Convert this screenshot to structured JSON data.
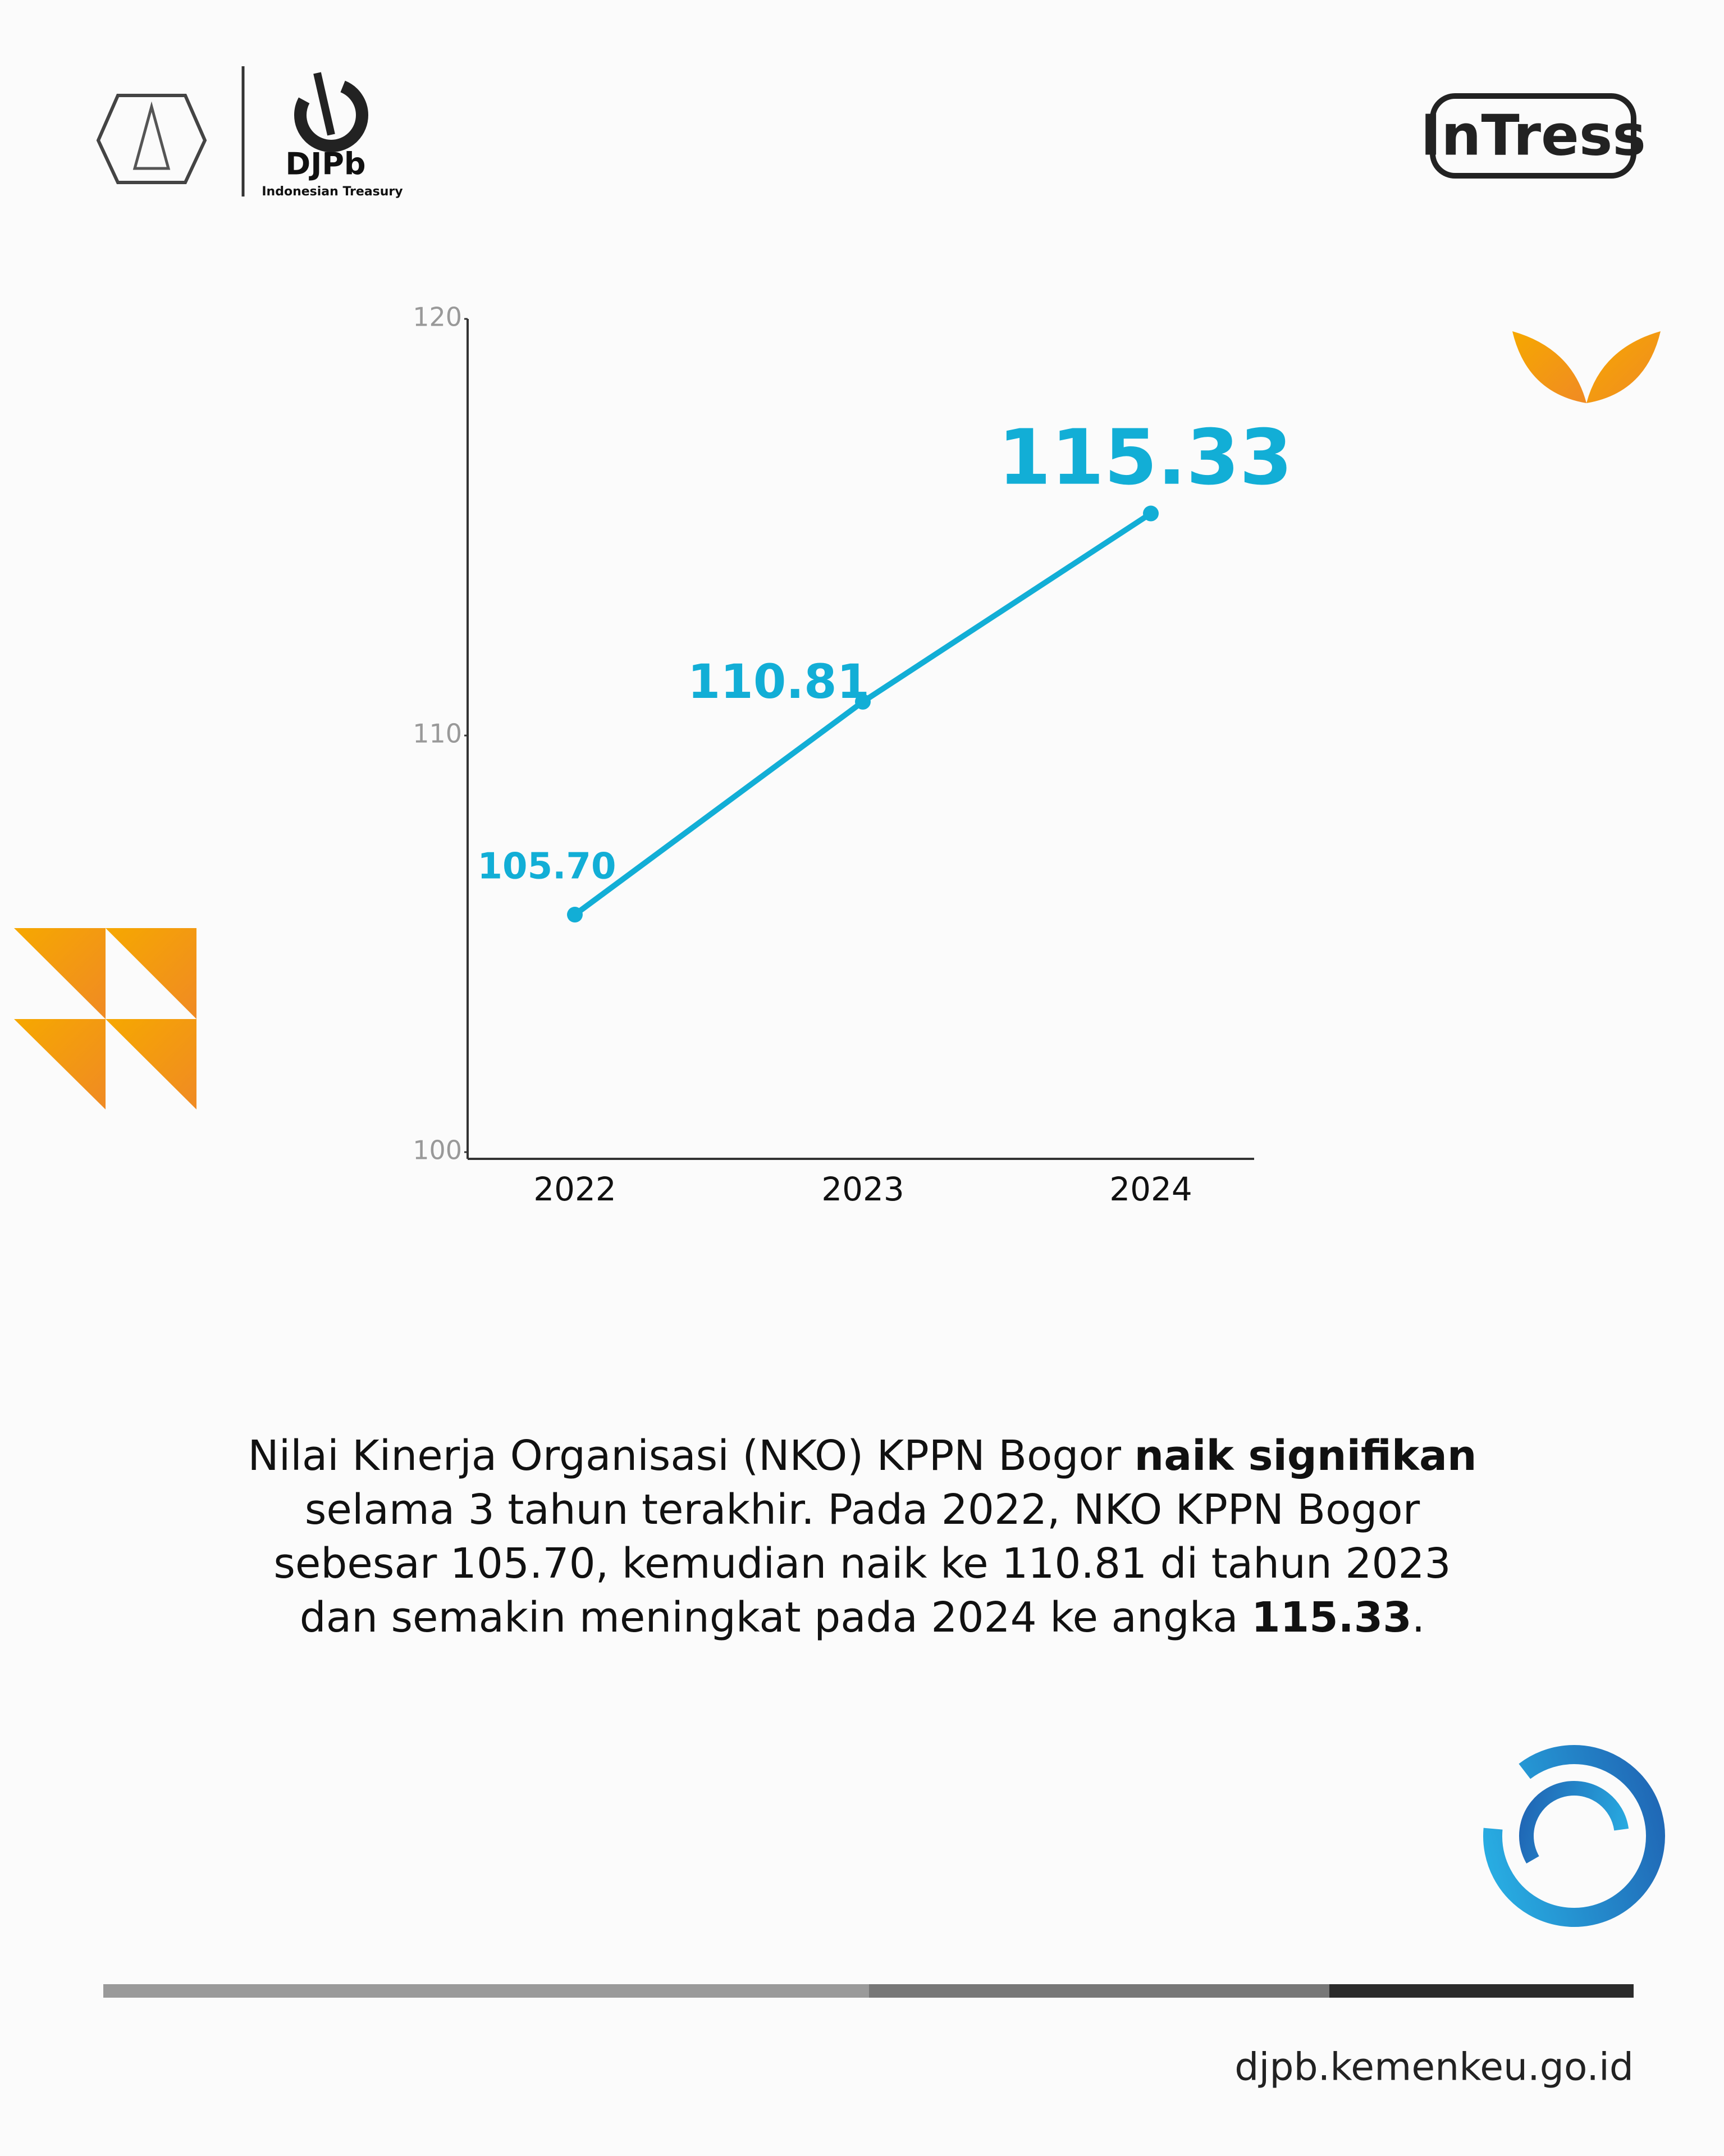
{
  "header": {
    "brand": "DJPb",
    "brand_subtitle": "Indonesian Treasury",
    "program": "InTress"
  },
  "chart_data": {
    "type": "line",
    "categories": [
      "2022",
      "2023",
      "2024"
    ],
    "series": [
      {
        "name": "NKO KPPN Bogor",
        "color": "#12aed6",
        "values": [
          105.7,
          110.81,
          115.33
        ],
        "value_labels": [
          "105.70",
          "110.81",
          "115.33"
        ]
      }
    ],
    "ylim": [
      100,
      120
    ],
    "yticks": [
      100,
      110,
      120
    ]
  },
  "description": {
    "parts": [
      "Nilai Kinerja Organisasi (NKO) KPPN Bogor ",
      "naik signifikan",
      " selama 3 tahun terakhir. Pada 2022, NKO KPPN Bogor sebesar 105.70, kemudian naik ke 110.81 di tahun 2023 dan semakin meningkat pada 2024 ke angka ",
      "115.33",
      "."
    ]
  },
  "footer": {
    "website": "djpb.kemenkeu.go.id"
  }
}
